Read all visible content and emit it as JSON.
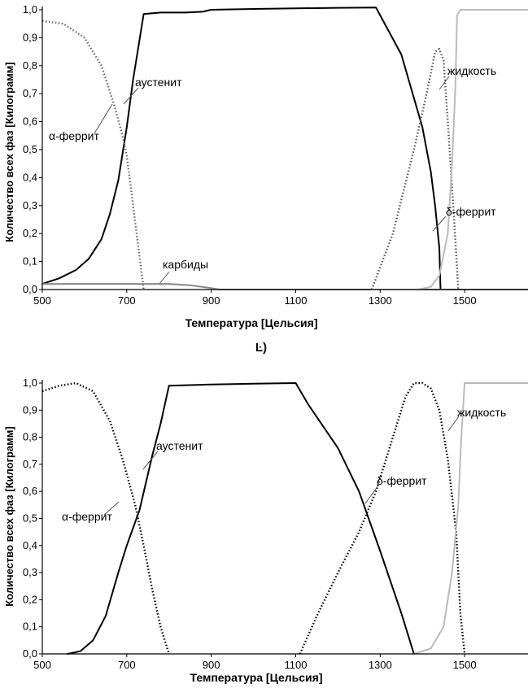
{
  "chart_data": [
    {
      "type": "line",
      "id": "chart1",
      "xlabel": "Температура [Цельсия]",
      "ylabel": "Количество всех фаз [Килограмм]",
      "xlim": [
        500,
        1650
      ],
      "ylim": [
        0,
        1.0
      ],
      "xticks": [
        "500",
        "700",
        "900",
        "1100",
        "1300",
        "1500"
      ],
      "xtick_values": [
        500,
        700,
        900,
        1100,
        1300,
        1500
      ],
      "yticks": [
        "0,0",
        "0,1",
        "0,2",
        "0,3",
        "0,4",
        "0,5",
        "0,6",
        "0,7",
        "0,8",
        "0,9",
        "1,0"
      ],
      "caption": "Ŀ)",
      "series": [
        {
          "name": "аустенит",
          "style": "solid",
          "color": "#000000",
          "x": [
            500,
            540,
            580,
            610,
            640,
            660,
            680,
            700,
            715,
            740,
            780,
            840,
            880,
            900,
            1000,
            1100,
            1200,
            1290,
            1300,
            1350,
            1400,
            1420,
            1430,
            1440,
            1443
          ],
          "y": [
            0.02,
            0.04,
            0.07,
            0.11,
            0.18,
            0.27,
            0.39,
            0.58,
            0.75,
            0.985,
            0.99,
            0.99,
            0.993,
            1.0,
            1.003,
            1.005,
            1.007,
            1.008,
            0.98,
            0.84,
            0.58,
            0.42,
            0.3,
            0.15,
            0.0
          ]
        },
        {
          "name": "α-феррит",
          "style": "dotted",
          "color": "#666666",
          "x": [
            500,
            550,
            600,
            640,
            670,
            690,
            700,
            715,
            730,
            740
          ],
          "y": [
            0.96,
            0.95,
            0.9,
            0.8,
            0.66,
            0.55,
            0.48,
            0.3,
            0.12,
            0.0
          ]
        },
        {
          "name": "карбиды",
          "style": "solid",
          "color": "#888888",
          "x": [
            500,
            600,
            700,
            800,
            850,
            900,
            920,
            1650
          ],
          "y": [
            0.02,
            0.02,
            0.02,
            0.02,
            0.015,
            0.005,
            0.0,
            0.0
          ]
        },
        {
          "name": "δ-феррит",
          "style": "dotted",
          "color": "#555555",
          "x": [
            1280,
            1330,
            1380,
            1410,
            1430,
            1440,
            1450,
            1460,
            1475,
            1485
          ],
          "y": [
            0.0,
            0.2,
            0.5,
            0.7,
            0.85,
            0.86,
            0.82,
            0.6,
            0.25,
            0.0
          ]
        },
        {
          "name": "жидкость",
          "style": "solid",
          "color": "#bbbbbb",
          "x": [
            1280,
            1390,
            1420,
            1440,
            1460,
            1470,
            1478,
            1482,
            1490,
            1550,
            1650
          ],
          "y": [
            0.0,
            0.0,
            0.01,
            0.05,
            0.2,
            0.45,
            0.72,
            0.98,
            1.0,
            1.0,
            1.0
          ]
        }
      ],
      "annotations": [
        {
          "text": "аустенит",
          "series": "аустенит"
        },
        {
          "text": "α-феррит",
          "series": "α-феррит"
        },
        {
          "text": "карбиды",
          "series": "карбиды"
        },
        {
          "text": "жидкость",
          "series": "жидкость"
        },
        {
          "text": "δ-феррит",
          "series": "δ-феррит"
        }
      ]
    },
    {
      "type": "line",
      "id": "chart2",
      "xlabel": "Температура [Цельсия]",
      "ylabel": "Количество всех фаз [Килограмм]",
      "xlim": [
        500,
        1650
      ],
      "ylim": [
        0,
        1.0
      ],
      "xticks": [
        "500",
        "700",
        "900",
        "1100",
        "1300",
        "1500"
      ],
      "xtick_values": [
        500,
        700,
        900,
        1100,
        1300,
        1500
      ],
      "yticks": [
        "0,0",
        "0,1",
        "0,2",
        "0,3",
        "0,4",
        "0,5",
        "0,6",
        "0,7",
        "0,8",
        "0,9",
        "1,0"
      ],
      "series": [
        {
          "name": "аустенит",
          "style": "solid",
          "color": "#000000",
          "x": [
            560,
            590,
            620,
            650,
            680,
            700,
            730,
            760,
            780,
            800,
            900,
            1000,
            1100,
            1130,
            1200,
            1250,
            1300,
            1350,
            1380
          ],
          "y": [
            0.0,
            0.01,
            0.05,
            0.14,
            0.3,
            0.4,
            0.53,
            0.73,
            0.85,
            0.99,
            0.995,
            0.998,
            1.0,
            0.92,
            0.76,
            0.6,
            0.38,
            0.15,
            0.0
          ]
        },
        {
          "name": "α-феррит",
          "style": "dotted",
          "color": "#000000",
          "x": [
            500,
            540,
            580,
            620,
            660,
            690,
            720,
            740,
            760,
            780,
            800
          ],
          "y": [
            0.97,
            0.99,
            1.0,
            0.97,
            0.86,
            0.72,
            0.55,
            0.4,
            0.24,
            0.1,
            0.0
          ]
        },
        {
          "name": "δ-феррит",
          "style": "dotted",
          "color": "#000000",
          "x": [
            1110,
            1150,
            1200,
            1250,
            1290,
            1330,
            1360,
            1380,
            1400,
            1420,
            1440,
            1460,
            1480,
            1490,
            1500
          ],
          "y": [
            0.0,
            0.14,
            0.3,
            0.45,
            0.6,
            0.8,
            0.95,
            1.0,
            1.0,
            0.98,
            0.9,
            0.72,
            0.45,
            0.15,
            0.0
          ]
        },
        {
          "name": "жидкость",
          "style": "solid",
          "color": "#bbbbbb",
          "x": [
            1380,
            1420,
            1450,
            1470,
            1485,
            1492,
            1500,
            1600,
            1650
          ],
          "y": [
            0.0,
            0.02,
            0.1,
            0.3,
            0.55,
            0.8,
            1.0,
            1.0,
            1.0
          ]
        }
      ],
      "annotations": [
        {
          "text": "аустенит",
          "series": "аустенит"
        },
        {
          "text": "α-феррит",
          "series": "α-феррит"
        },
        {
          "text": "жидкость",
          "series": "жидкость"
        },
        {
          "text": "δ-феррит",
          "series": "δ-феррит"
        }
      ]
    }
  ]
}
